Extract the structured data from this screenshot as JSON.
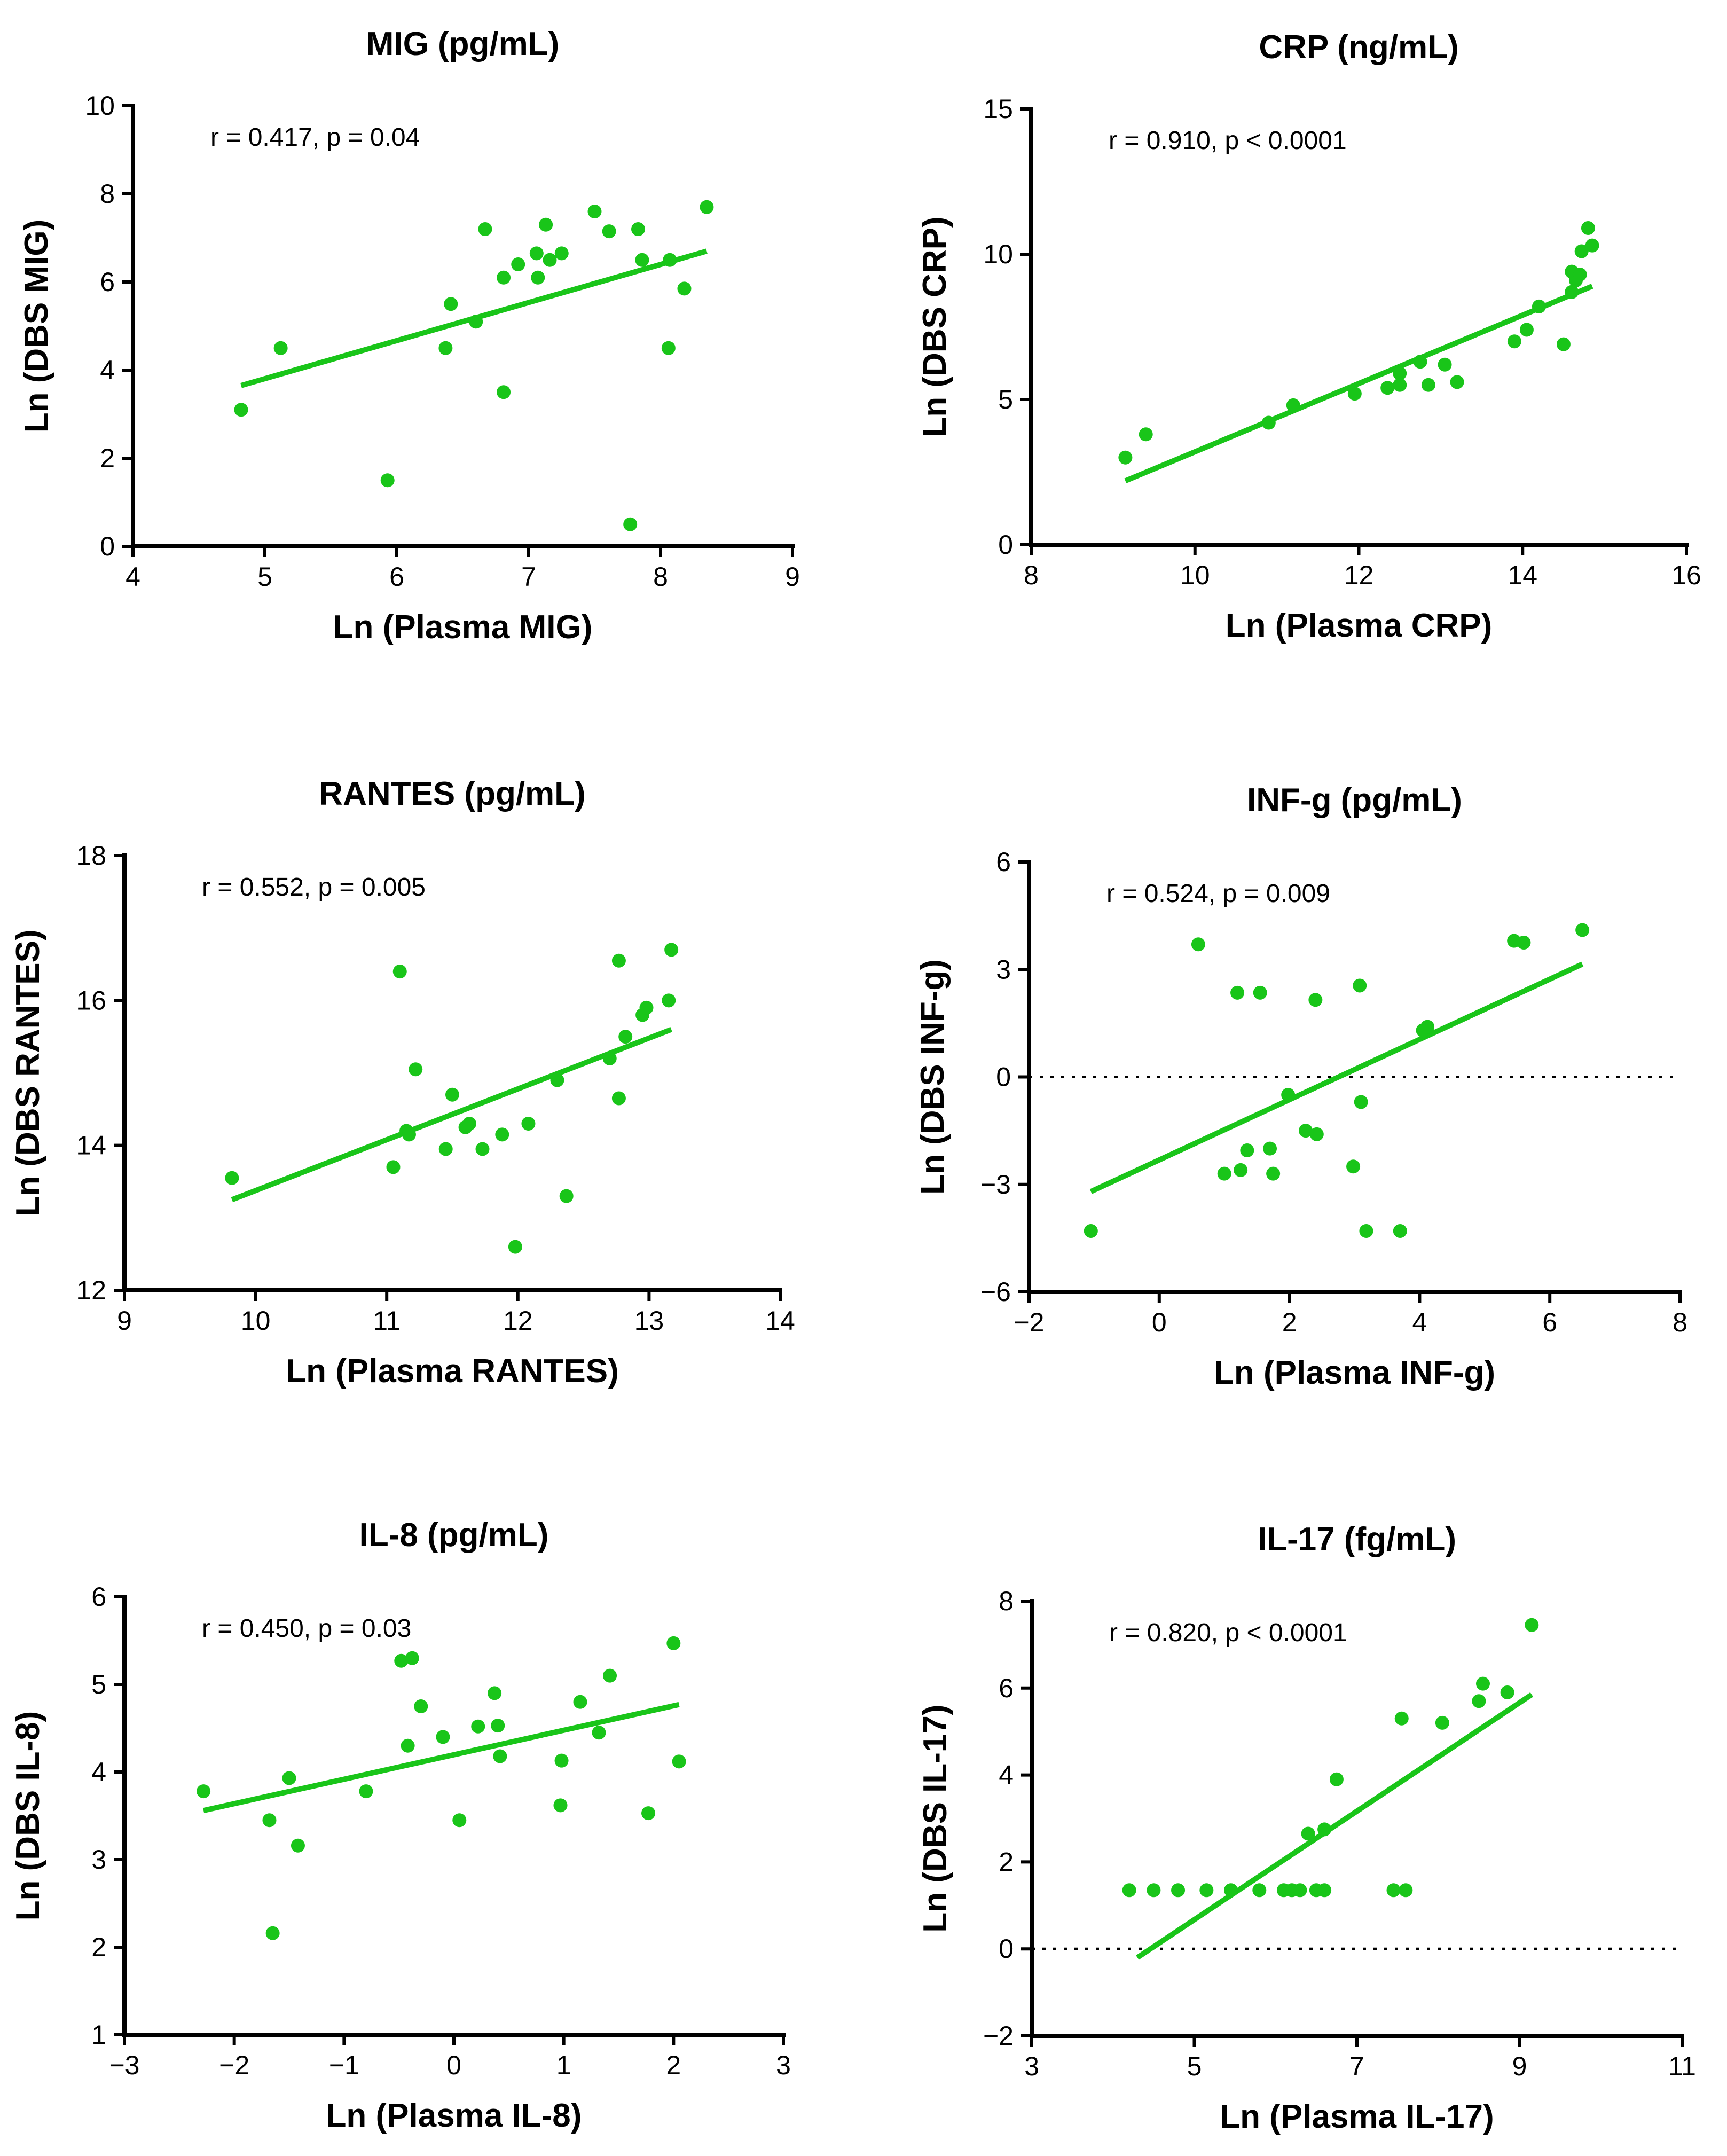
{
  "chart_data": [
    {
      "type": "scatter",
      "title": "MIG (pg/mL)",
      "xlabel": "Ln (Plasma MIG)",
      "ylabel": "Ln (DBS MIG)",
      "annotation": "r = 0.417, p = 0.04",
      "xlim": [
        4,
        9
      ],
      "ylim": [
        0,
        10
      ],
      "xticks": [
        4,
        5,
        6,
        7,
        8,
        9
      ],
      "xtick_labels": [
        "4",
        "5",
        "6",
        "7",
        "8",
        "9"
      ],
      "yticks": [
        0,
        2,
        4,
        6,
        8,
        10
      ],
      "ytick_labels": [
        "0",
        "2",
        "4",
        "6",
        "8",
        "10"
      ],
      "zero_line": false,
      "points": [
        [
          4.82,
          3.1
        ],
        [
          5.12,
          4.5
        ],
        [
          5.93,
          1.5
        ],
        [
          6.37,
          4.5
        ],
        [
          6.41,
          5.5
        ],
        [
          6.6,
          5.1
        ],
        [
          6.67,
          7.2
        ],
        [
          6.81,
          3.5
        ],
        [
          6.81,
          6.1
        ],
        [
          6.92,
          6.4
        ],
        [
          7.06,
          6.65
        ],
        [
          7.07,
          6.1
        ],
        [
          7.13,
          7.3
        ],
        [
          7.16,
          6.5
        ],
        [
          7.25,
          6.65
        ],
        [
          7.5,
          7.6
        ],
        [
          7.61,
          7.15
        ],
        [
          7.77,
          0.5
        ],
        [
          7.83,
          7.2
        ],
        [
          7.86,
          6.5
        ],
        [
          8.06,
          4.5
        ],
        [
          8.07,
          6.5
        ],
        [
          8.18,
          5.85
        ],
        [
          8.35,
          7.7
        ]
      ],
      "fit": [
        [
          4.82,
          3.65
        ],
        [
          8.35,
          6.7
        ]
      ]
    },
    {
      "type": "scatter",
      "title": "CRP (ng/mL)",
      "xlabel": "Ln (Plasma CRP)",
      "ylabel": "Ln (DBS CRP)",
      "annotation": "r = 0.910, p < 0.0001",
      "xlim": [
        8,
        16
      ],
      "ylim": [
        0,
        15
      ],
      "xticks": [
        8,
        10,
        12,
        14,
        16
      ],
      "xtick_labels": [
        "8",
        "10",
        "12",
        "14",
        "16"
      ],
      "yticks": [
        0,
        5,
        10,
        15
      ],
      "ytick_labels": [
        "0",
        "5",
        "10",
        "15"
      ],
      "zero_line": false,
      "points": [
        [
          9.15,
          3.0
        ],
        [
          9.4,
          3.8
        ],
        [
          10.9,
          4.2
        ],
        [
          11.2,
          4.8
        ],
        [
          11.95,
          5.2
        ],
        [
          12.35,
          5.4
        ],
        [
          12.5,
          5.9
        ],
        [
          12.5,
          5.5
        ],
        [
          12.75,
          6.3
        ],
        [
          12.85,
          5.5
        ],
        [
          13.05,
          6.2
        ],
        [
          13.2,
          5.6
        ],
        [
          13.9,
          7.0
        ],
        [
          14.05,
          7.4
        ],
        [
          14.2,
          8.2
        ],
        [
          14.5,
          6.9
        ],
        [
          14.6,
          8.7
        ],
        [
          14.6,
          9.4
        ],
        [
          14.65,
          9.1
        ],
        [
          14.7,
          9.3
        ],
        [
          14.72,
          10.1
        ],
        [
          14.8,
          10.9
        ],
        [
          14.85,
          10.3
        ]
      ],
      "fit": [
        [
          9.15,
          2.2
        ],
        [
          14.85,
          8.9
        ]
      ]
    },
    {
      "type": "scatter",
      "title": "RANTES (pg/mL)",
      "xlabel": "Ln (Plasma RANTES)",
      "ylabel": "Ln (DBS RANTES)",
      "annotation": "r = 0.552, p = 0.005",
      "xlim": [
        9,
        14
      ],
      "ylim": [
        12,
        18
      ],
      "xticks": [
        9,
        10,
        11,
        12,
        13,
        14
      ],
      "xtick_labels": [
        "9",
        "10",
        "11",
        "12",
        "13",
        "14"
      ],
      "yticks": [
        12,
        14,
        16,
        18
      ],
      "ytick_labels": [
        "12",
        "14",
        "16",
        "18"
      ],
      "zero_line": false,
      "points": [
        [
          9.82,
          13.55
        ],
        [
          11.05,
          13.7
        ],
        [
          11.1,
          16.4
        ],
        [
          11.15,
          14.2
        ],
        [
          11.17,
          14.15
        ],
        [
          11.22,
          15.05
        ],
        [
          11.45,
          13.95
        ],
        [
          11.5,
          14.7
        ],
        [
          11.6,
          14.25
        ],
        [
          11.63,
          14.3
        ],
        [
          11.73,
          13.95
        ],
        [
          11.88,
          14.15
        ],
        [
          11.98,
          12.6
        ],
        [
          12.08,
          14.3
        ],
        [
          12.3,
          14.9
        ],
        [
          12.37,
          13.3
        ],
        [
          12.7,
          15.2
        ],
        [
          12.77,
          14.65
        ],
        [
          12.77,
          16.55
        ],
        [
          12.82,
          15.5
        ],
        [
          12.95,
          15.8
        ],
        [
          12.98,
          15.9
        ],
        [
          13.15,
          16.0
        ],
        [
          13.17,
          16.7
        ]
      ],
      "fit": [
        [
          9.82,
          13.25
        ],
        [
          13.17,
          15.6
        ]
      ]
    },
    {
      "type": "scatter",
      "title": "INF-g (pg/mL)",
      "xlabel": "Ln (Plasma INF-g)",
      "ylabel": "Ln (DBS INF-g)",
      "annotation": "r = 0.524, p = 0.009",
      "xlim": [
        -2,
        8
      ],
      "ylim": [
        -6,
        6
      ],
      "xticks": [
        -2,
        0,
        2,
        4,
        6,
        8
      ],
      "xtick_labels": [
        "−2",
        "0",
        "2",
        "4",
        "6",
        "8"
      ],
      "yticks": [
        -6,
        -3,
        0,
        3,
        6
      ],
      "ytick_labels": [
        "−6",
        "−3",
        "0",
        "3",
        "6"
      ],
      "zero_line": true,
      "points": [
        [
          -1.05,
          -4.3
        ],
        [
          0.6,
          3.7
        ],
        [
          1.0,
          -2.7
        ],
        [
          1.2,
          2.35
        ],
        [
          1.25,
          -2.6
        ],
        [
          1.35,
          -2.05
        ],
        [
          1.55,
          2.35
        ],
        [
          1.7,
          -2.0
        ],
        [
          1.75,
          -2.7
        ],
        [
          1.98,
          -0.5
        ],
        [
          2.25,
          -1.5
        ],
        [
          2.4,
          2.15
        ],
        [
          2.42,
          -1.6
        ],
        [
          2.98,
          -2.5
        ],
        [
          3.08,
          2.55
        ],
        [
          3.1,
          -0.7
        ],
        [
          3.18,
          -4.3
        ],
        [
          3.7,
          -4.3
        ],
        [
          4.05,
          1.3
        ],
        [
          4.12,
          1.4
        ],
        [
          5.45,
          3.8
        ],
        [
          5.6,
          3.75
        ],
        [
          6.5,
          4.1
        ]
      ],
      "fit": [
        [
          -1.05,
          -3.2
        ],
        [
          6.5,
          3.15
        ]
      ]
    },
    {
      "type": "scatter",
      "title": "IL-8 (pg/mL)",
      "xlabel": "Ln (Plasma IL-8)",
      "ylabel": "Ln (DBS IL-8)",
      "annotation": "r = 0.450, p = 0.03",
      "xlim": [
        -3,
        3
      ],
      "ylim": [
        1,
        6
      ],
      "xticks": [
        -3,
        -2,
        -1,
        0,
        1,
        2,
        3
      ],
      "xtick_labels": [
        "−3",
        "−2",
        "−1",
        "0",
        "1",
        "2",
        "3"
      ],
      "yticks": [
        1,
        2,
        3,
        4,
        5,
        6
      ],
      "ytick_labels": [
        "1",
        "2",
        "3",
        "4",
        "5",
        "6"
      ],
      "zero_line": false,
      "points": [
        [
          -2.28,
          3.78
        ],
        [
          -1.68,
          3.45
        ],
        [
          -1.65,
          2.16
        ],
        [
          -1.5,
          3.93
        ],
        [
          -1.42,
          3.16
        ],
        [
          -0.8,
          3.78
        ],
        [
          -0.48,
          5.27
        ],
        [
          -0.42,
          4.3
        ],
        [
          -0.38,
          5.3
        ],
        [
          -0.3,
          4.75
        ],
        [
          -0.1,
          4.4
        ],
        [
          0.05,
          3.45
        ],
        [
          0.22,
          4.52
        ],
        [
          0.37,
          4.9
        ],
        [
          0.4,
          4.53
        ],
        [
          0.42,
          4.18
        ],
        [
          0.97,
          3.62
        ],
        [
          0.98,
          4.13
        ],
        [
          1.15,
          4.8
        ],
        [
          1.32,
          4.45
        ],
        [
          1.42,
          5.1
        ],
        [
          1.77,
          3.53
        ],
        [
          2.0,
          5.47
        ],
        [
          2.05,
          4.12
        ]
      ],
      "fit": [
        [
          -2.28,
          3.56
        ],
        [
          2.05,
          4.77
        ]
      ]
    },
    {
      "type": "scatter",
      "title": "IL-17 (fg/mL)",
      "xlabel": "Ln (Plasma IL-17)",
      "ylabel": "Ln (DBS IL-17)",
      "annotation": "r = 0.820, p < 0.0001",
      "xlim": [
        3,
        11
      ],
      "ylim": [
        -2,
        8
      ],
      "xticks": [
        3,
        5,
        7,
        9,
        11
      ],
      "xtick_labels": [
        "3",
        "5",
        "7",
        "9",
        "11"
      ],
      "yticks": [
        -2,
        0,
        2,
        4,
        6,
        8
      ],
      "ytick_labels": [
        "−2",
        "0",
        "2",
        "4",
        "6",
        "8"
      ],
      "zero_line": true,
      "points": [
        [
          4.2,
          1.35
        ],
        [
          4.5,
          1.35
        ],
        [
          4.8,
          1.35
        ],
        [
          5.15,
          1.35
        ],
        [
          5.45,
          1.35
        ],
        [
          5.8,
          1.35
        ],
        [
          6.1,
          1.35
        ],
        [
          6.2,
          1.35
        ],
        [
          6.3,
          1.35
        ],
        [
          6.4,
          2.65
        ],
        [
          6.5,
          1.35
        ],
        [
          6.6,
          1.35
        ],
        [
          6.6,
          2.75
        ],
        [
          6.75,
          3.9
        ],
        [
          7.45,
          1.35
        ],
        [
          7.55,
          5.3
        ],
        [
          7.6,
          1.35
        ],
        [
          8.05,
          5.2
        ],
        [
          8.5,
          5.7
        ],
        [
          8.55,
          6.1
        ],
        [
          8.85,
          5.9
        ],
        [
          9.15,
          7.45
        ]
      ],
      "fit": [
        [
          4.3,
          -0.2
        ],
        [
          9.15,
          5.85
        ]
      ]
    }
  ]
}
